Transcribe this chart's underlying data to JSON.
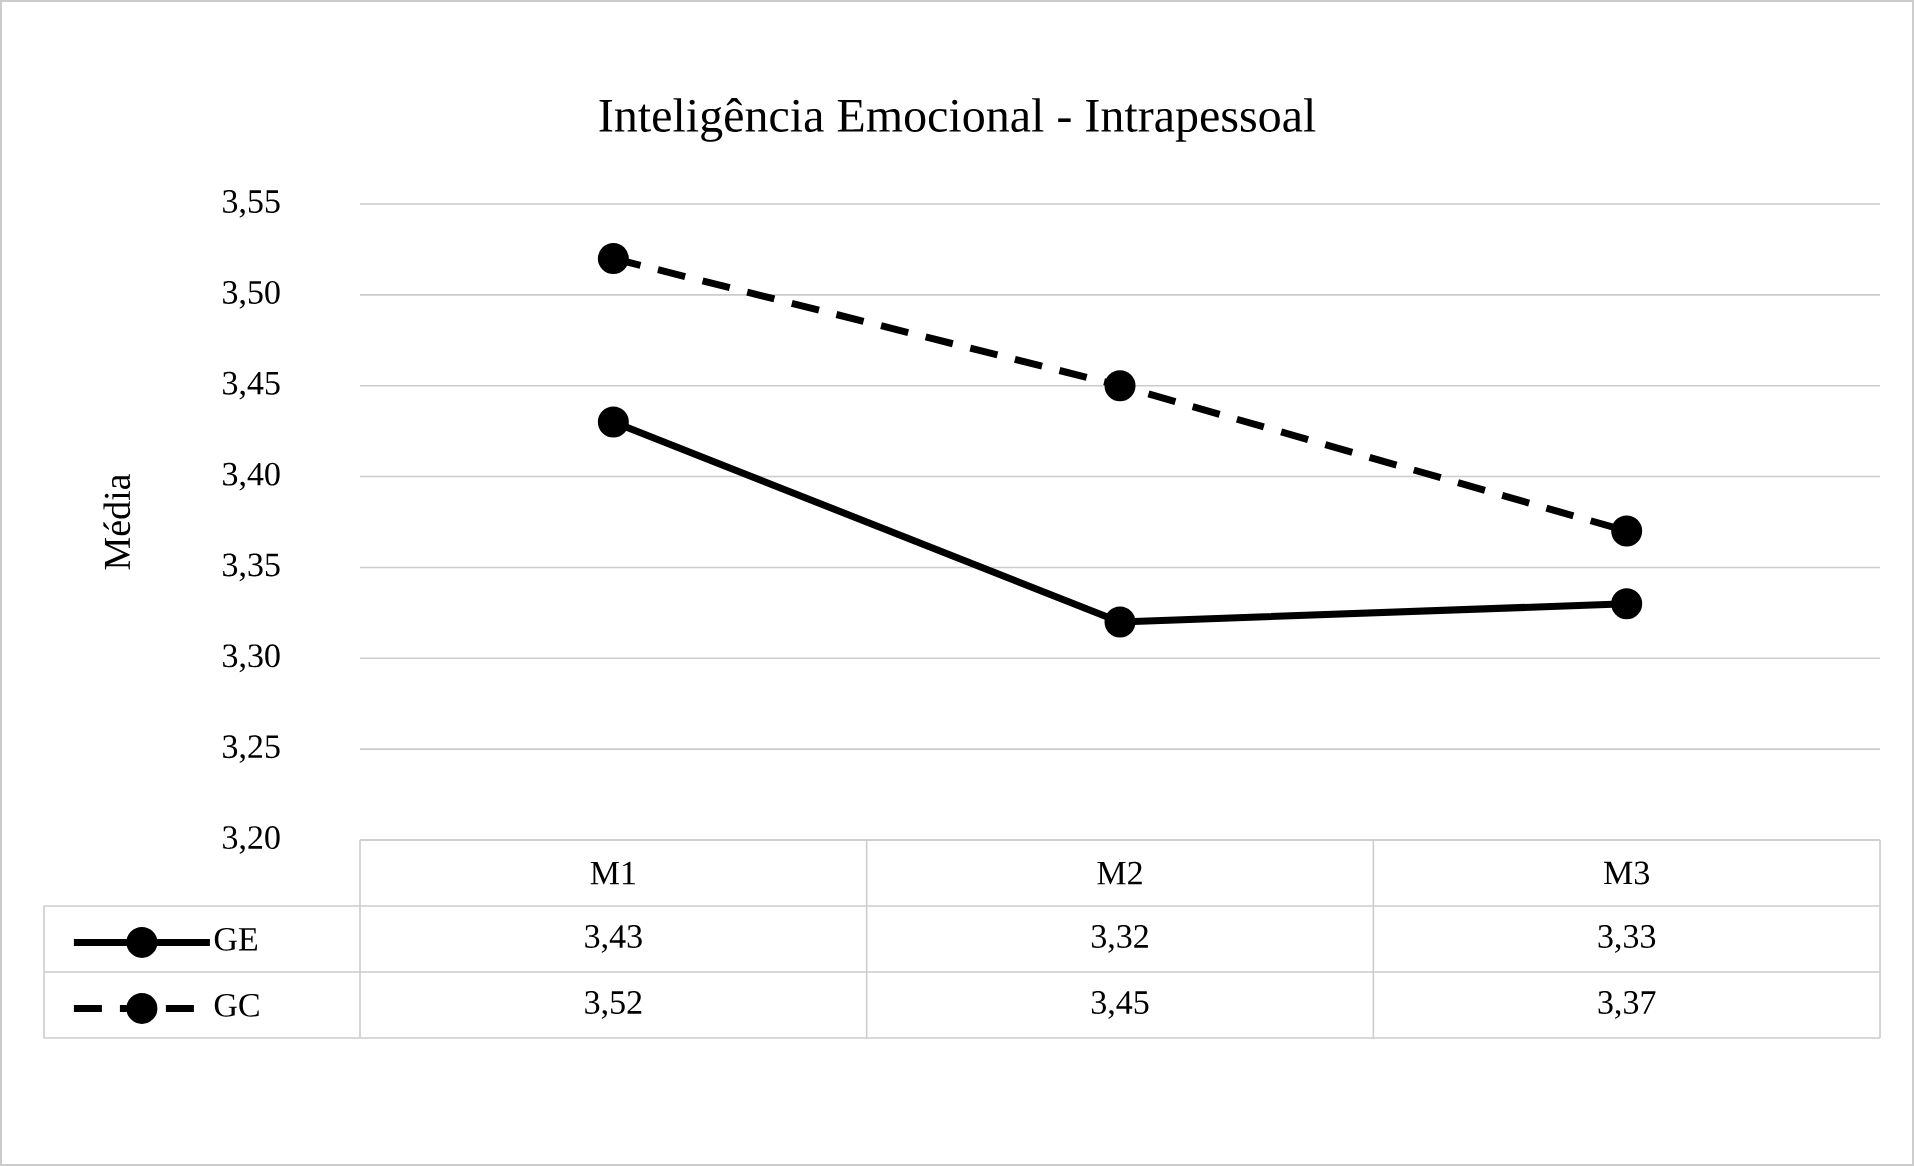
{
  "chart_data": {
    "type": "line",
    "title": "Inteligência Emocional - Intrapessoal",
    "ylabel": "Média",
    "categories": [
      "M1",
      "M2",
      "M3"
    ],
    "series": [
      {
        "name": "GE",
        "color": "#000000",
        "values": [
          3.43,
          3.32,
          3.33
        ],
        "line_style": "solid",
        "value_labels": [
          "3,43",
          "3,32",
          "3,33"
        ]
      },
      {
        "name": "GC",
        "color": "#000000",
        "values": [
          3.52,
          3.45,
          3.37
        ],
        "line_style": "dashed",
        "value_labels": [
          "3,52",
          "3,45",
          "3,37"
        ]
      }
    ],
    "ylim": [
      3.2,
      3.55
    ],
    "yticks": [
      {
        "value": 3.2,
        "label": "3,20"
      },
      {
        "value": 3.25,
        "label": "3,25"
      },
      {
        "value": 3.3,
        "label": "3,30"
      },
      {
        "value": 3.35,
        "label": "3,35"
      },
      {
        "value": 3.4,
        "label": "3,40"
      },
      {
        "value": 3.45,
        "label": "3,45"
      },
      {
        "value": 3.5,
        "label": "3,50"
      },
      {
        "value": 3.55,
        "label": "3,55"
      }
    ],
    "grid": "y",
    "legend": "bottom",
    "marker": "circle"
  }
}
